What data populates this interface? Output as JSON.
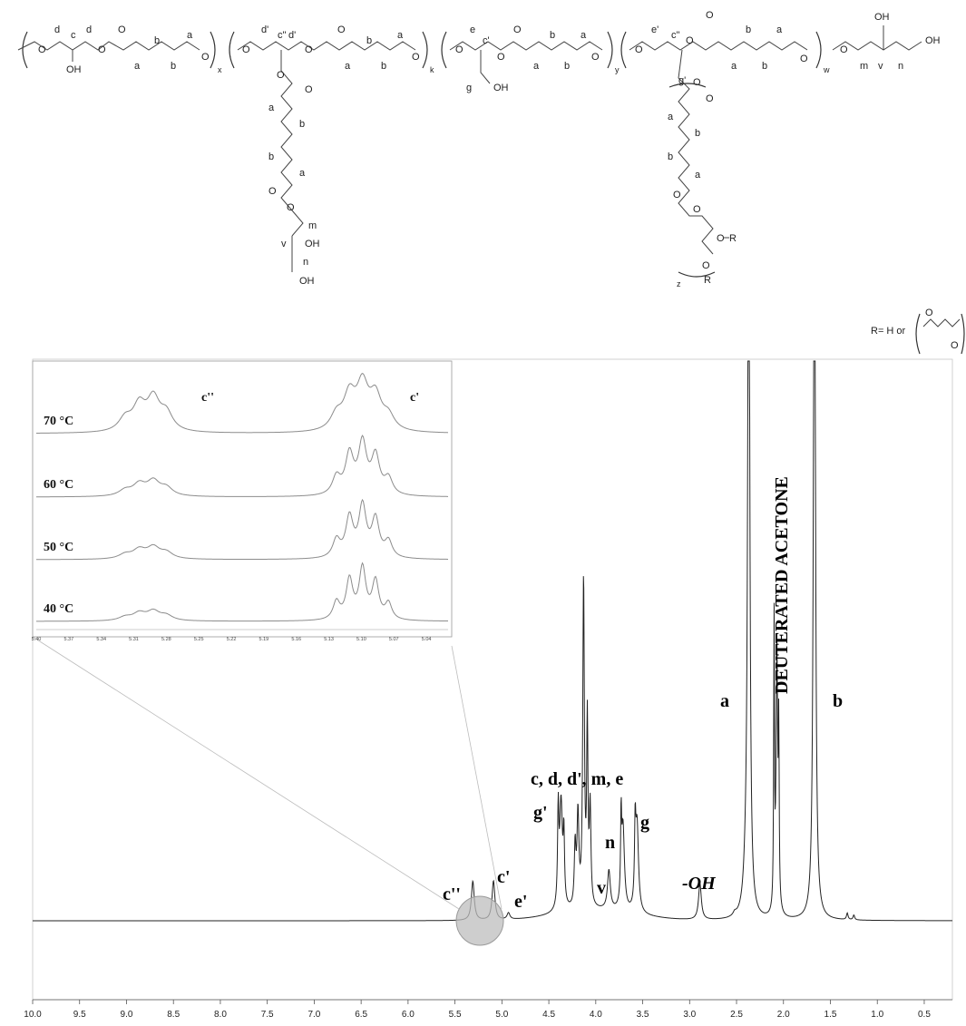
{
  "structure": {
    "labels": {
      "a": "a",
      "b": "b",
      "c": "c",
      "c_dprime": "c\"",
      "c_prime": "c'",
      "d": "d",
      "d_prime": "d'",
      "e": "e",
      "e_prime": "e'",
      "g": "g",
      "g_prime": "g'",
      "m": "m",
      "n": "n",
      "v": "v",
      "O": "O",
      "OH": "OH",
      "R": "R"
    },
    "subscripts": {
      "x": "x",
      "k": "k",
      "y": "y",
      "w": "w",
      "z": "z"
    },
    "r_definition": "R= H or"
  },
  "chart_data": {
    "type": "line",
    "xlim": [
      10.0,
      0.2
    ],
    "x_ticks": [
      "10.0",
      "9.5",
      "9.0",
      "8.5",
      "8.0",
      "7.5",
      "7.0",
      "6.5",
      "6.0",
      "5.5",
      "5.0",
      "4.5",
      "4.0",
      "3.5",
      "3.0",
      "2.5",
      "2.0",
      "1.5",
      "1.0",
      "0.5"
    ],
    "peaks": [
      {
        "label": "c''",
        "ppm": 5.31,
        "height": 0.12
      },
      {
        "label": "c'",
        "ppm": 5.09,
        "height": 0.12
      },
      {
        "label": "e'",
        "ppm": 4.93,
        "height": 0.02
      },
      {
        "label": "g'",
        "ppm": 4.37,
        "height": 0.33
      },
      {
        "label": "c, d, d', m, e",
        "ppm": 4.13,
        "height": 1.0
      },
      {
        "label": "v",
        "ppm": 3.86,
        "height": 0.12
      },
      {
        "label": "n",
        "ppm": 3.71,
        "height": 0.26
      },
      {
        "label": "g",
        "ppm": 3.56,
        "height": 0.27
      },
      {
        "label": "-OH",
        "ppm": 2.89,
        "height": 0.11
      },
      {
        "label": "a",
        "ppm": 2.37,
        "height": 2.6
      },
      {
        "label": "DEUTERATED ACETONE",
        "ppm": 2.07,
        "height": 0.82
      },
      {
        "label": "b",
        "ppm": 1.67,
        "height": 2.6
      }
    ],
    "inset": {
      "xlim": [
        5.4,
        5.02
      ],
      "x_ticks": [
        "5.40",
        "5.37",
        "5.34",
        "5.31",
        "5.28",
        "5.25",
        "5.22",
        "5.19",
        "5.16",
        "5.13",
        "5.10",
        "5.07",
        "5.04"
      ],
      "peak_labels": [
        "c''",
        "c'"
      ],
      "temperatures": [
        "70 °C",
        "60 °C",
        "50 °C",
        "40 °C"
      ]
    }
  }
}
